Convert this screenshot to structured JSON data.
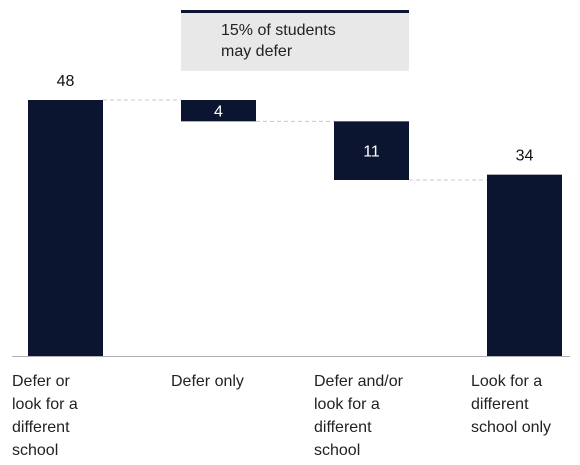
{
  "chart_data": {
    "type": "bar",
    "subtype": "waterfall",
    "categories": [
      "Defer or look for a different school",
      "Defer only",
      "Defer and/or look for a different school",
      "Look for a different school only"
    ],
    "category_label_lines": [
      [
        "Defer or",
        "look for a",
        "different",
        "school"
      ],
      [
        "Defer only"
      ],
      [
        "Defer and/or",
        "look for a",
        "different",
        "school"
      ],
      [
        "Look for a",
        "different",
        "school only"
      ]
    ],
    "values": [
      48,
      4,
      11,
      34
    ],
    "bars": [
      {
        "label": "48",
        "start": 0,
        "end": 48,
        "label_position": "above"
      },
      {
        "label": "4",
        "start": 44,
        "end": 48,
        "label_position": "inside"
      },
      {
        "label": "11",
        "start": 33,
        "end": 44,
        "label_position": "inside"
      },
      {
        "label": "34",
        "start": 0,
        "end": 34,
        "label_position": "above"
      }
    ],
    "ylim": [
      0,
      48
    ],
    "grid": false,
    "colors": {
      "bar": "#0b1530",
      "label_inside": "#ffffff",
      "label_outside": "#111111",
      "connector": "#c8c8c8",
      "annotation_bg": "#e8e8e8",
      "annotation_border": "#0b1530",
      "baseline": "#b0b0b0"
    },
    "annotation": {
      "lines": [
        "15% of students",
        "may defer"
      ],
      "spans_categories": [
        1,
        2
      ]
    }
  }
}
